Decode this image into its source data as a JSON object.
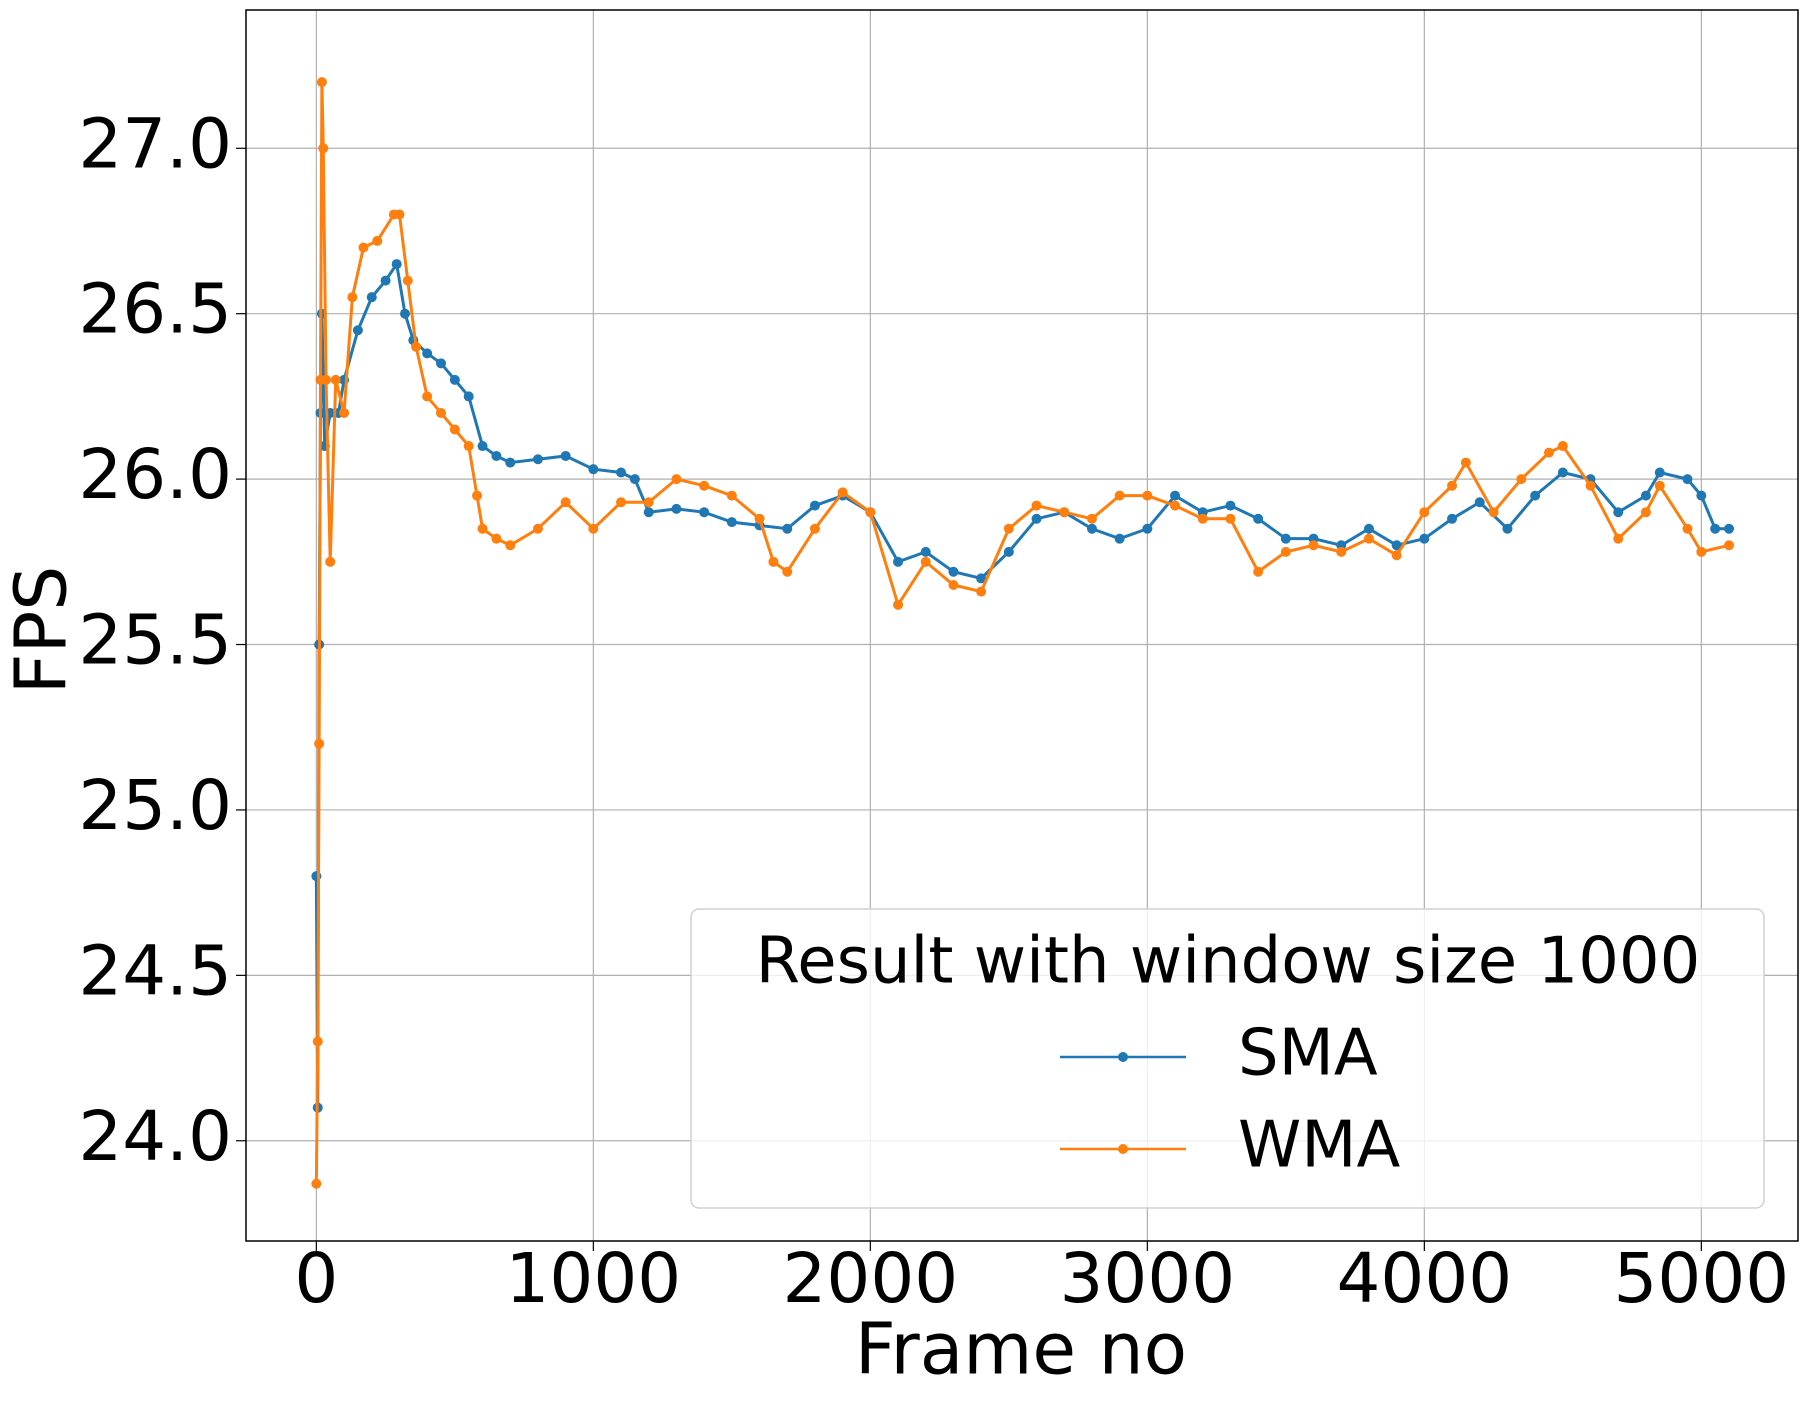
{
  "chart_data": {
    "type": "line",
    "xlabel": "Frame no",
    "ylabel": "FPS",
    "legend_title": "Result with window size 1000",
    "legend": "lower right",
    "grid": true,
    "xlim": [
      -254,
      5349
    ],
    "ylim": [
      23.697,
      27.418
    ],
    "xticks": [
      0,
      1000,
      2000,
      3000,
      4000,
      5000
    ],
    "yticks": [
      {
        "value": 24,
        "label": "24.0"
      },
      24.5,
      {
        "value": 25,
        "label": "25.0"
      },
      25.5,
      {
        "value": 26,
        "label": "26.0"
      },
      26.5,
      {
        "value": 27,
        "label": "27.0"
      }
    ],
    "series": [
      {
        "name": "SMA",
        "color": "#1f77b4",
        "x": [
          0,
          5,
          10,
          15,
          20,
          30,
          50,
          80,
          100,
          150,
          200,
          250,
          290,
          320,
          350,
          400,
          450,
          500,
          550,
          600,
          650,
          700,
          800,
          900,
          1000,
          1100,
          1150,
          1200,
          1300,
          1400,
          1500,
          1600,
          1700,
          1800,
          1900,
          2000,
          2100,
          2200,
          2300,
          2400,
          2500,
          2600,
          2700,
          2800,
          2900,
          3000,
          3100,
          3200,
          3300,
          3400,
          3500,
          3600,
          3700,
          3800,
          3900,
          4000,
          4100,
          4200,
          4300,
          4400,
          4500,
          4600,
          4700,
          4800,
          4850,
          4950,
          5000,
          5050,
          5100
        ],
        "values": [
          24.8,
          24.1,
          25.5,
          26.2,
          26.5,
          26.1,
          26.2,
          26.2,
          26.3,
          26.45,
          26.55,
          26.6,
          26.65,
          26.5,
          26.42,
          26.38,
          26.35,
          26.3,
          26.25,
          26.1,
          26.07,
          26.05,
          26.06,
          26.07,
          26.03,
          26.02,
          26.0,
          25.9,
          25.91,
          25.9,
          25.87,
          25.86,
          25.85,
          25.92,
          25.95,
          25.9,
          25.75,
          25.78,
          25.72,
          25.7,
          25.78,
          25.88,
          25.9,
          25.85,
          25.82,
          25.85,
          25.95,
          25.9,
          25.92,
          25.88,
          25.82,
          25.82,
          25.8,
          25.85,
          25.8,
          25.82,
          25.88,
          25.93,
          25.85,
          25.95,
          26.02,
          26.0,
          25.9,
          25.95,
          26.02,
          26.0,
          25.95,
          25.85,
          25.85
        ]
      },
      {
        "name": "WMA",
        "color": "#ff7f0e",
        "x": [
          0,
          5,
          10,
          15,
          20,
          25,
          35,
          50,
          70,
          100,
          130,
          170,
          220,
          280,
          300,
          330,
          360,
          400,
          450,
          500,
          550,
          580,
          600,
          650,
          700,
          800,
          900,
          1000,
          1100,
          1200,
          1300,
          1400,
          1500,
          1600,
          1650,
          1700,
          1800,
          1900,
          2000,
          2100,
          2200,
          2300,
          2400,
          2500,
          2600,
          2700,
          2800,
          2900,
          3000,
          3100,
          3200,
          3300,
          3400,
          3500,
          3600,
          3700,
          3800,
          3900,
          4000,
          4100,
          4150,
          4250,
          4350,
          4450,
          4500,
          4600,
          4700,
          4800,
          4850,
          4950,
          5000,
          5100
        ],
        "values": [
          23.87,
          24.3,
          25.2,
          26.3,
          27.2,
          27.0,
          26.3,
          25.75,
          26.3,
          26.2,
          26.55,
          26.7,
          26.72,
          26.8,
          26.8,
          26.6,
          26.4,
          26.25,
          26.2,
          26.15,
          26.1,
          25.95,
          25.85,
          25.82,
          25.8,
          25.85,
          25.93,
          25.85,
          25.93,
          25.93,
          26.0,
          25.98,
          25.95,
          25.88,
          25.75,
          25.72,
          25.85,
          25.96,
          25.9,
          25.62,
          25.75,
          25.68,
          25.66,
          25.85,
          25.92,
          25.9,
          25.88,
          25.95,
          25.95,
          25.92,
          25.88,
          25.88,
          25.72,
          25.78,
          25.8,
          25.78,
          25.82,
          25.77,
          25.9,
          25.98,
          26.05,
          25.9,
          26.0,
          26.08,
          26.1,
          25.98,
          25.82,
          25.9,
          25.98,
          25.85,
          25.78,
          25.8
        ]
      }
    ]
  }
}
